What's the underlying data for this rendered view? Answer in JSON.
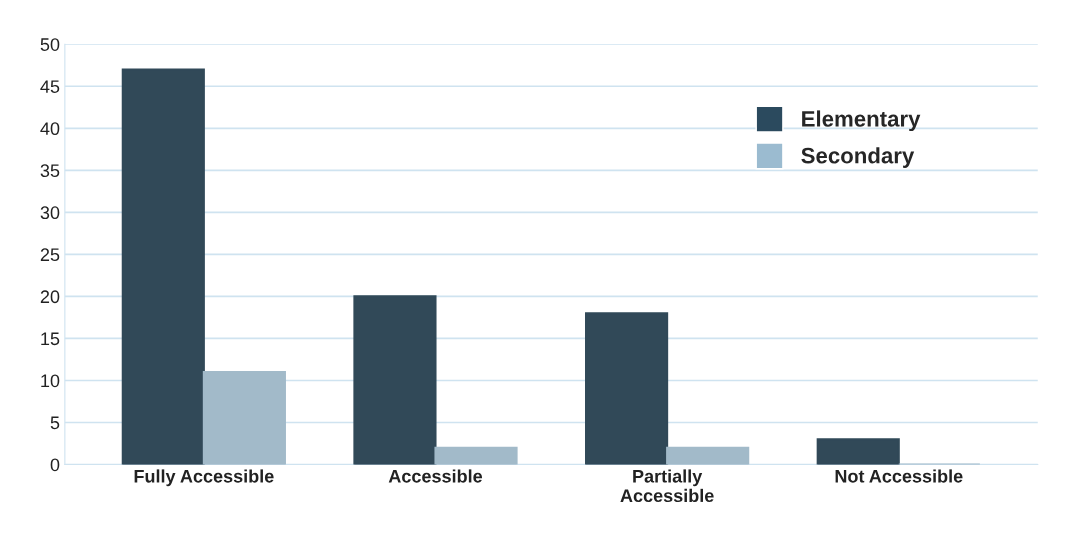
{
  "chart_data": {
    "type": "bar",
    "categories": [
      "Fully Accessible",
      "Accessible",
      "Partially\nAccessible",
      "Not Accessible"
    ],
    "series": [
      {
        "name": "Elementary",
        "color": "#2b4a5e",
        "values": [
          47,
          20,
          18,
          3
        ]
      },
      {
        "name": "Secondary",
        "color": "#9bbbd0",
        "values": [
          11,
          2,
          2,
          0
        ]
      }
    ],
    "ylim": [
      0,
      50
    ],
    "yticks": [
      0,
      5,
      10,
      15,
      20,
      25,
      30,
      35,
      40,
      45,
      50
    ],
    "grid": "y",
    "legend": "top right"
  }
}
